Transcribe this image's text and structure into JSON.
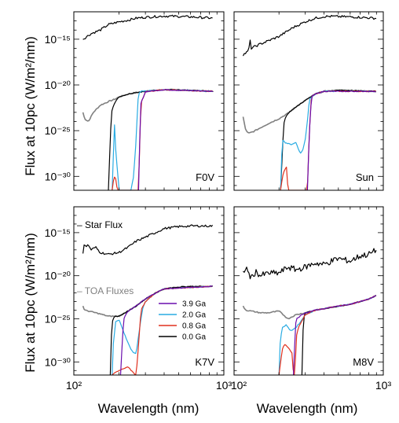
{
  "chart_data": {
    "type": "line",
    "ylabel": "Flux at 10pc (W/m²/nm)",
    "xlabel": "Wavelength (nm)",
    "x_scale": "log",
    "y_scale": "log",
    "xlim": [
      100,
      1000
    ],
    "ylim": [
      3e-32,
      1e-12
    ],
    "x_ticks": [
      "10²",
      "10³"
    ],
    "y_ticks": [
      "10⁻¹⁵",
      "10⁻²⁰",
      "10⁻²⁵",
      "10⁻³⁰"
    ],
    "colors": {
      "star": "#000000",
      "toa": "#808080",
      "3.9 Ga": "#6a0dad",
      "2.0 Ga": "#29abe2",
      "0.8 Ga": "#e0301e",
      "0.0 Ga": "#000000"
    },
    "annotations": {
      "star_flux": "– Star Flux",
      "toa_fluxes": "– TOA Fluxes"
    },
    "legend": {
      "placement": "lower-right of panel K7V",
      "entries": [
        "3.9 Ga",
        "2.0 Ga",
        "0.8 Ga",
        "0.0 Ga"
      ]
    },
    "panels": [
      {
        "label": "F0V",
        "xmin": 115,
        "xmax": 850,
        "star": {
          "x": [
            115,
            130,
            150,
            170,
            200,
            230,
            260,
            300,
            350,
            400,
            450,
            500,
            600,
            700,
            850
          ],
          "y": [
            1e-15,
            4e-15,
            1e-14,
            4e-14,
            8e-14,
            1.2e-13,
            2e-13,
            2.5e-13,
            3e-13,
            3.4e-13,
            3.3e-13,
            3.1e-13,
            2.8e-13,
            2.4e-13,
            2e-13
          ]
        },
        "toa": {
          "x": [
            115,
            118,
            125,
            135,
            150,
            170,
            190,
            200,
            230,
            260,
            300,
            350,
            400,
            500,
            600,
            850
          ],
          "y": [
            1e-23,
            2e-24,
            1e-24,
            1e-23,
            6e-23,
            1.5e-22,
            3e-22,
            5e-22,
            1e-21,
            1.5e-21,
            2e-21,
            2.6e-21,
            3e-21,
            2.8e-21,
            2.5e-21,
            2e-21
          ]
        },
        "age_0_0": {
          "x": [
            170,
            175,
            178,
            180,
            185,
            200,
            230,
            260,
            300,
            350,
            400,
            500,
            850
          ],
          "y": [
            3e-32,
            1e-26,
            1e-23,
            2e-23,
            8e-23,
            5e-22,
            1e-21,
            1.5e-21,
            2e-21,
            2.6e-21,
            3e-21,
            2.8e-21,
            2e-21
          ]
        },
        "age_2_0": {
          "x": [
            180,
            183,
            187,
            190,
            200,
            240,
            250,
            260,
            265,
            268,
            272,
            280,
            300,
            400,
            850
          ],
          "y": [
            3e-32,
            1e-28,
            1e-24,
            1e-27,
            3e-32,
            3e-32,
            1e-30,
            1e-26,
            1e-23,
            3e-22,
            1.2e-21,
            2e-21,
            2.2e-21,
            3e-21,
            2e-21
          ]
        },
        "age_0_8": {
          "x": [
            180,
            185,
            190,
            195,
            270,
            275,
            280,
            300,
            400,
            850
          ],
          "y": [
            3e-32,
            1e-30,
            5e-31,
            3e-32,
            3e-32,
            1e-26,
            1e-22,
            1.8e-21,
            3e-21,
            2e-21
          ]
        },
        "age_3_9": {
          "x": [
            270,
            275,
            280,
            300,
            400,
            850
          ],
          "y": [
            3e-32,
            1e-26,
            1e-22,
            1.8e-21,
            3e-21,
            2e-21
          ]
        }
      },
      {
        "label": "Sun",
        "xmin": 115,
        "xmax": 900,
        "star": {
          "x": [
            115,
            125,
            128,
            130,
            150,
            200,
            250,
            300,
            350,
            400,
            450,
            500,
            600,
            700,
            800,
            900
          ],
          "y": [
            2e-17,
            5e-17,
            8e-16,
            1e-16,
            3e-16,
            2e-15,
            2e-14,
            8e-14,
            2e-13,
            3e-13,
            3.2e-13,
            3e-13,
            2.8e-13,
            2.5e-13,
            2.2e-13,
            1.9e-13
          ]
        },
        "toa": {
          "x": [
            115,
            120,
            125,
            135,
            150,
            170,
            200,
            230,
            260,
            300,
            350,
            400,
            500,
            600,
            900
          ],
          "y": [
            3e-24,
            1e-25,
            5e-26,
            8e-26,
            2e-25,
            6e-25,
            2e-24,
            8e-24,
            4e-23,
            2e-22,
            1e-21,
            2e-21,
            2.6e-21,
            2.5e-21,
            2e-21
          ]
        },
        "age_0_0": {
          "x": [
            205,
            210,
            215,
            220,
            230,
            260,
            300,
            350,
            400,
            500,
            900
          ],
          "y": [
            3e-32,
            1e-28,
            5e-25,
            2e-24,
            8e-24,
            4e-23,
            2e-22,
            1e-21,
            2e-21,
            2.6e-21,
            2e-21
          ]
        },
        "age_2_0": {
          "x": [
            205,
            208,
            212,
            220,
            240,
            260,
            270,
            280,
            290,
            300,
            310,
            320,
            350,
            400,
            900
          ],
          "y": [
            3e-32,
            1e-28,
            1e-26,
            5e-27,
            3e-27,
            5e-27,
            1e-27,
            3e-28,
            1e-27,
            1e-26,
            1e-24,
            3e-22,
            1e-21,
            2e-21,
            2e-21
          ]
        },
        "age_0_8": {
          "x": [
            205,
            210,
            215,
            225,
            230,
            310,
            315,
            320,
            330,
            350,
            400,
            900
          ],
          "y": [
            3e-32,
            5e-31,
            3e-30,
            1e-29,
            3e-32,
            3e-32,
            1e-28,
            1e-25,
            5e-22,
            1e-21,
            2e-21,
            2e-21
          ]
        },
        "age_3_9": {
          "x": [
            310,
            315,
            320,
            330,
            350,
            400,
            900
          ],
          "y": [
            3e-32,
            1e-28,
            1e-25,
            5e-22,
            1e-21,
            2e-21,
            2e-21
          ]
        }
      },
      {
        "label": "K7V",
        "xmin": 115,
        "xmax": 850,
        "star": {
          "x": [
            115,
            118,
            120,
            125,
            130,
            140,
            150,
            170,
            200,
            230,
            260,
            300,
            350,
            400,
            500,
            600,
            850
          ],
          "y": [
            5e-18,
            1e-16,
            2e-17,
            4e-17,
            1e-17,
            2e-17,
            5e-18,
            3e-18,
            5e-18,
            2e-17,
            1e-16,
            3e-16,
            1e-15,
            3e-15,
            5e-15,
            6e-15,
            6e-15
          ]
        },
        "toa": {
          "x": [
            115,
            118,
            125,
            140,
            170,
            200,
            230,
            260,
            300,
            350,
            400,
            500,
            600,
            850
          ],
          "y": [
            3e-24,
            1e-24,
            8e-25,
            5e-25,
            2e-25,
            2e-25,
            8e-25,
            3e-24,
            2e-23,
            1e-22,
            3e-22,
            5e-22,
            6e-22,
            6e-22
          ]
        },
        "age_0_0": {
          "x": [
            175,
            178,
            182,
            190,
            200,
            230,
            260,
            300,
            350,
            400,
            500,
            850
          ],
          "y": [
            3e-32,
            1e-27,
            1e-25,
            2e-25,
            2e-25,
            8e-25,
            3e-24,
            2e-23,
            1e-22,
            3e-22,
            5e-22,
            6e-22
          ]
        },
        "age_2_0": {
          "x": [
            180,
            183,
            190,
            200,
            220,
            240,
            250,
            260,
            270,
            280,
            290,
            300,
            350,
            400,
            850
          ],
          "y": [
            3e-32,
            1e-28,
            5e-26,
            8e-26,
            1e-27,
            3e-29,
            1e-29,
            1e-29,
            1e-27,
            1e-25,
            3e-24,
            1e-23,
            1e-22,
            3e-22,
            6e-22
          ]
        },
        "age_0_8": {
          "x": [
            180,
            185,
            200,
            230,
            240,
            260,
            270,
            280,
            300,
            350,
            400,
            850
          ],
          "y": [
            3e-32,
            5e-32,
            1e-31,
            3e-31,
            1e-31,
            3e-32,
            1e-28,
            1e-24,
            1e-23,
            1e-22,
            3e-22,
            6e-22
          ]
        },
        "age_3_9": {
          "x": [
            205,
            210,
            215,
            230,
            260,
            300,
            350,
            400,
            850
          ],
          "y": [
            3e-32,
            1e-28,
            1e-25,
            8e-25,
            3e-24,
            2e-23,
            1e-22,
            3e-22,
            6e-22
          ]
        }
      },
      {
        "label": "M8V",
        "xmin": 115,
        "xmax": 900,
        "star": {
          "x": [
            115,
            120,
            130,
            140,
            150,
            170,
            200,
            230,
            260,
            300,
            350,
            400,
            450,
            500,
            600,
            700,
            800,
            900
          ],
          "y": [
            2e-20,
            1e-19,
            5e-21,
            3e-20,
            1e-20,
            2e-20,
            2e-20,
            1e-19,
            5e-20,
            1e-19,
            3e-19,
            2e-19,
            5e-19,
            1e-18,
            5e-19,
            2e-18,
            3e-18,
            1e-17
          ]
        },
        "toa": {
          "x": [
            115,
            120,
            130,
            150,
            170,
            200,
            230,
            260,
            300,
            350,
            400,
            500,
            600,
            700,
            800,
            900
          ],
          "y": [
            3e-24,
            1e-24,
            8e-25,
            5e-25,
            5e-25,
            8e-25,
            1e-25,
            3e-25,
            5e-25,
            1e-24,
            1.5e-24,
            3e-24,
            5e-24,
            1e-23,
            2e-23,
            5e-23
          ]
        },
        "age_0_0": {
          "x": [
            285,
            288,
            292,
            300,
            350,
            400,
            500,
            600,
            700,
            800,
            900
          ],
          "y": [
            3e-32,
            1e-28,
            1e-25,
            5e-25,
            1e-24,
            1.5e-24,
            3e-24,
            5e-24,
            1e-23,
            2e-23,
            5e-23
          ]
        },
        "age_2_0": {
          "x": [
            200,
            203,
            210,
            225,
            235,
            245,
            260,
            280,
            300,
            350,
            400,
            500,
            600,
            700,
            800,
            900
          ],
          "y": [
            3e-32,
            1e-28,
            1e-26,
            2e-26,
            5e-27,
            5e-27,
            1e-26,
            5e-26,
            3e-25,
            1e-24,
            1.5e-24,
            3e-24,
            5e-24,
            1e-23,
            2e-23,
            5e-23
          ]
        },
        "age_0_8": {
          "x": [
            200,
            205,
            212,
            220,
            235,
            245,
            250,
            255,
            262,
            270,
            300,
            350,
            400,
            500,
            600,
            700,
            800,
            900
          ],
          "y": [
            3e-32,
            1e-30,
            5e-29,
            1e-28,
            3e-29,
            1e-29,
            3e-32,
            3e-32,
            1e-27,
            1e-26,
            3e-25,
            1e-24,
            1.5e-24,
            3e-24,
            5e-24,
            1e-23,
            2e-23,
            5e-23
          ]
        },
        "age_3_9": {
          "x": [
            250,
            255,
            260,
            300,
            350,
            400,
            500,
            600,
            700,
            800,
            900
          ],
          "y": [
            3e-32,
            1e-28,
            1e-25,
            5e-25,
            1e-24,
            1.5e-24,
            3e-24,
            5e-24,
            1e-23,
            2e-23,
            5e-23
          ]
        }
      }
    ]
  }
}
